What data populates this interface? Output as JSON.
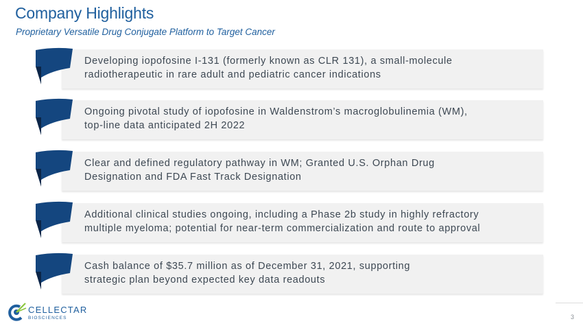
{
  "slide": {
    "title": "Company Highlights",
    "subtitle": "Proprietary Versatile Drug Conjugate Platform to Target Cancer",
    "page_number": "3"
  },
  "highlights": [
    {
      "lines": [
        "Developing iopofosine I-131 (formerly known as CLR 131), a small-molecule",
        "radiotherapeutic in rare adult and pediatric cancer indications"
      ]
    },
    {
      "lines": [
        "Ongoing pivotal study of iopofosine in Waldenstrom’s macroglobulinemia (WM),",
        "top-line data anticipated 2H 2022"
      ]
    },
    {
      "lines": [
        "Clear and defined regulatory pathway in WM; Granted U.S. Orphan Drug",
        "Designation and FDA Fast Track Designation"
      ]
    },
    {
      "lines": [
        "Additional clinical studies ongoing, including a Phase 2b study in highly refractory",
        "multiple myeloma; potential for near-term commercialization and route to approval"
      ]
    },
    {
      "lines": [
        "Cash balance of $35.7 million as of December 31, 2021, supporting",
        "strategic plan beyond expected key data readouts"
      ]
    }
  ],
  "logo": {
    "name": "CELLECTAR",
    "sub": "BIOSCIENCES"
  },
  "colors": {
    "accent": "#1f5f9e",
    "tab": "#14467f",
    "tab_fold": "#0b2547",
    "bar": "#f1f1f1",
    "text": "#3d4853"
  }
}
